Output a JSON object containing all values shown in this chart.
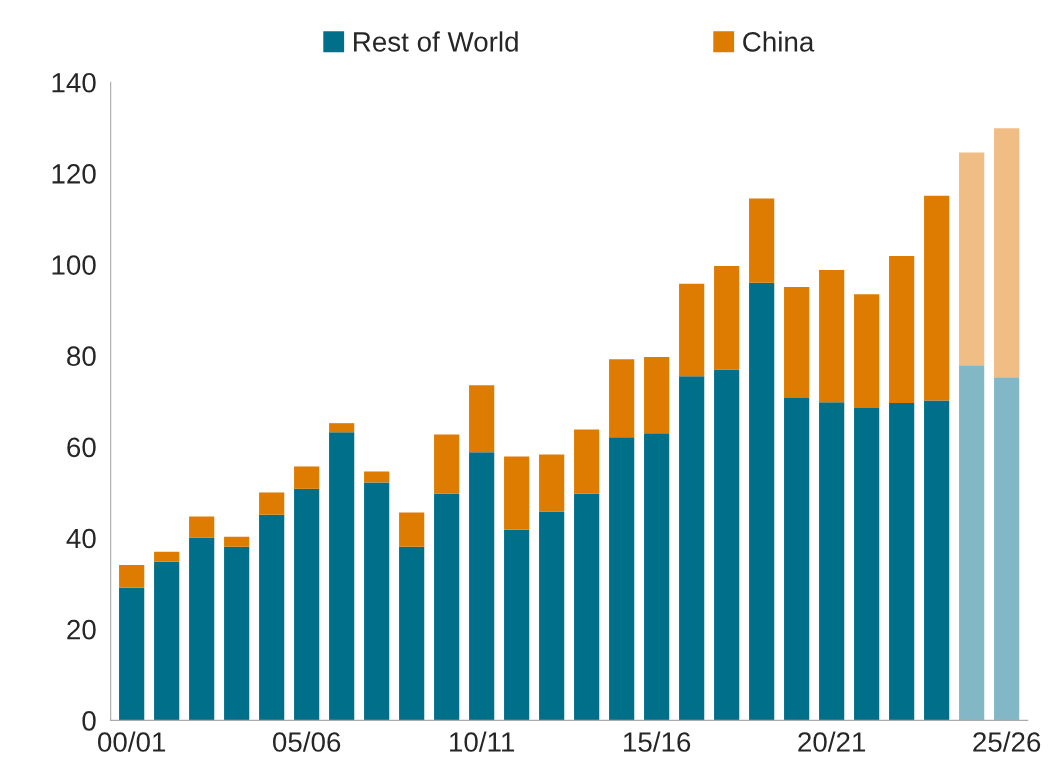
{
  "chart_data": {
    "type": "bar",
    "stacked": true,
    "legend": "top",
    "grid": false,
    "categories": [
      "00/01",
      null,
      null,
      null,
      null,
      "05/06",
      null,
      null,
      null,
      null,
      "10/11",
      null,
      null,
      null,
      null,
      "15/16",
      null,
      null,
      null,
      null,
      "20/21",
      null,
      null,
      null,
      null,
      "25/26"
    ],
    "series": [
      {
        "name": "Rest of World",
        "color": "#006f8a",
        "colors": [
          "#006f8a",
          "#006f8a",
          "#006f8a",
          "#006f8a",
          "#006f8a",
          "#006f8a",
          "#006f8a",
          "#006f8a",
          "#006f8a",
          "#006f8a",
          "#006f8a",
          "#006f8a",
          "#006f8a",
          "#006f8a",
          "#006f8a",
          "#006f8a",
          "#006f8a",
          "#006f8a",
          "#006f8a",
          "#006f8a",
          "#006f8a",
          "#006f8a",
          "#006f8a",
          "#006f8a",
          "#82b7c6",
          "#82b7c6"
        ],
        "values": [
          29.1,
          34.8,
          40.1,
          38.1,
          45.1,
          50.8,
          63.2,
          52.2,
          38.1,
          49.7,
          58.8,
          41.8,
          45.8,
          49.7,
          62.1,
          63.0,
          75.5,
          77.0,
          96.0,
          70.7,
          69.8,
          68.5,
          69.6,
          70.2,
          77.9,
          75.3
        ]
      },
      {
        "name": "China",
        "color": "#dd7c00",
        "colors": [
          "#dd7c00",
          "#dd7c00",
          "#dd7c00",
          "#dd7c00",
          "#dd7c00",
          "#dd7c00",
          "#dd7c00",
          "#dd7c00",
          "#dd7c00",
          "#dd7c00",
          "#dd7c00",
          "#dd7c00",
          "#dd7c00",
          "#dd7c00",
          "#dd7c00",
          "#dd7c00",
          "#dd7c00",
          "#dd7c00",
          "#dd7c00",
          "#dd7c00",
          "#dd7c00",
          "#dd7c00",
          "#dd7c00",
          "#dd7c00",
          "#f0bd84",
          "#f0bd84"
        ],
        "values": [
          5.0,
          2.2,
          4.6,
          2.2,
          4.9,
          4.9,
          2.0,
          2.4,
          7.5,
          13.0,
          14.7,
          16.1,
          12.5,
          14.1,
          17.1,
          16.7,
          20.3,
          22.7,
          18.5,
          24.4,
          29.0,
          25.0,
          32.3,
          44.9,
          46.7,
          54.6
        ]
      }
    ],
    "ylim": [
      0,
      140
    ],
    "yticks": [
      0,
      20,
      40,
      60,
      80,
      100,
      120,
      140
    ]
  }
}
